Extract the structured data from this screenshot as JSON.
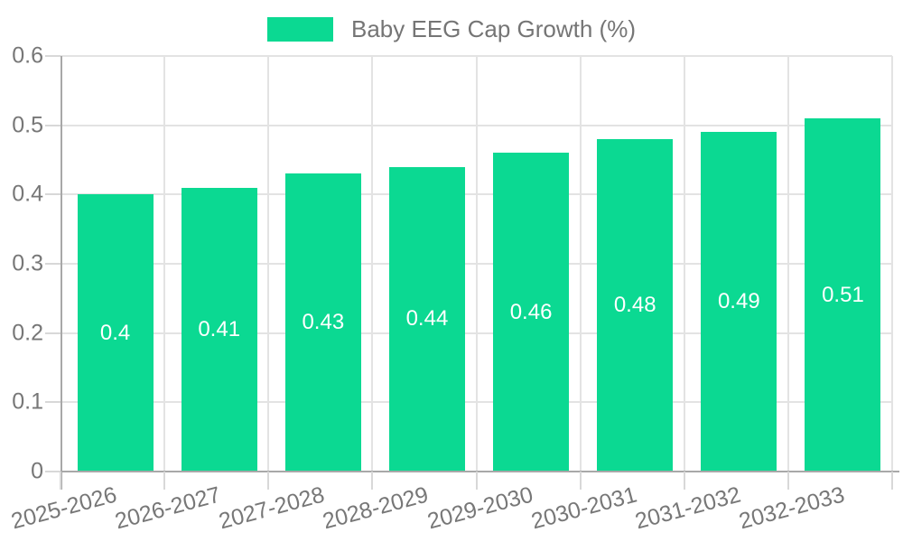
{
  "chart_data": {
    "type": "bar",
    "title": "Baby EEG Cap Growth (%)",
    "categories": [
      "2025-2026",
      "2026-2027",
      "2027-2028",
      "2028-2029",
      "2029-2030",
      "2030-2031",
      "2031-2032",
      "2032-2033"
    ],
    "values": [
      0.4,
      0.41,
      0.43,
      0.44,
      0.46,
      0.48,
      0.49,
      0.51
    ],
    "bar_labels": [
      "0.4",
      "0.41",
      "0.43",
      "0.44",
      "0.46",
      "0.48",
      "0.49",
      "0.51"
    ],
    "ylim": [
      0,
      0.6
    ],
    "yticks": [
      0,
      0.1,
      0.2,
      0.3,
      0.4,
      0.5,
      0.6
    ],
    "ytick_labels": [
      "0",
      "0.1",
      "0.2",
      "0.3",
      "0.4",
      "0.5",
      "0.6"
    ],
    "xlabel": "",
    "ylabel": "",
    "grid": true,
    "legend_position": "top-center",
    "colors": {
      "bar": "#0bd992",
      "bar_label_text": "#ffffff",
      "axis_text": "#777777",
      "legend_text": "#757575",
      "axis_line": "#a8a8a8",
      "tick_mark": "#d8d8d8",
      "gridline": "#e3e3e3",
      "background": "#ffffff"
    }
  }
}
